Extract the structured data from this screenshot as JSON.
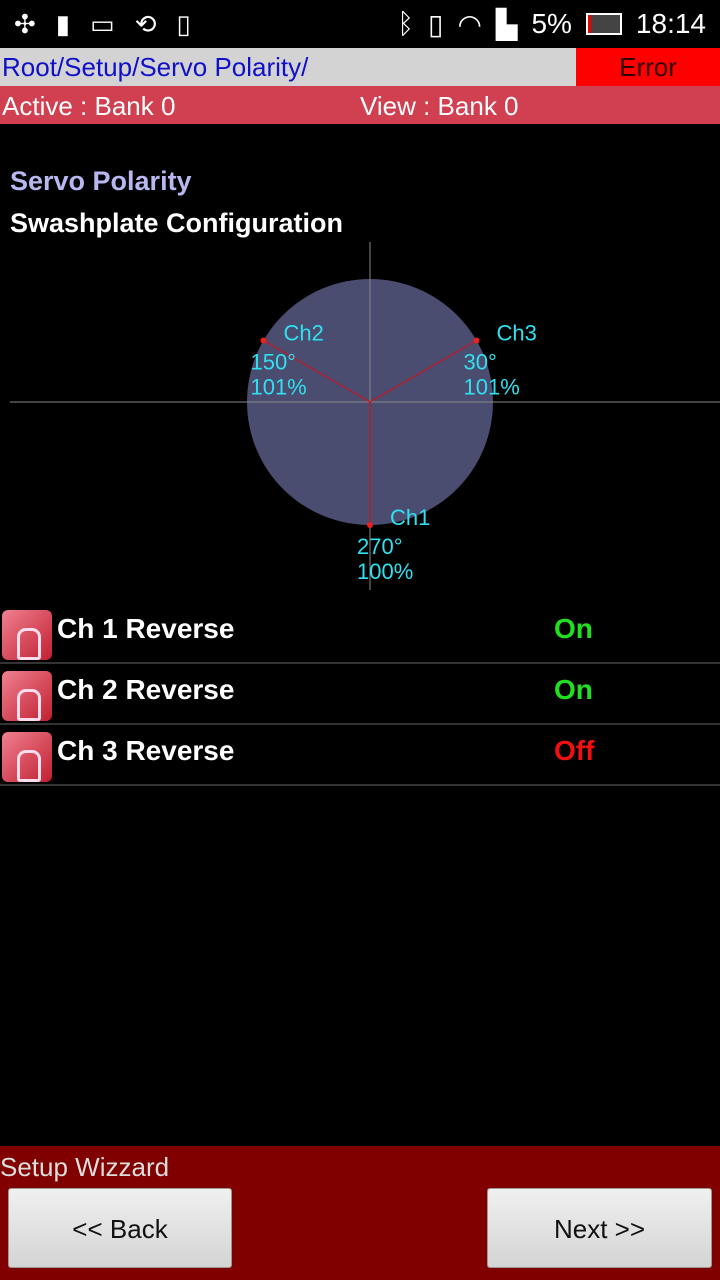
{
  "status_bar": {
    "battery": "5%",
    "time": "18:14"
  },
  "breadcrumb": "Root/Setup/Servo Polarity/",
  "error_label": "Error",
  "bank": {
    "active": "Active : Bank 0",
    "view": "View : Bank 0"
  },
  "title": "Servo Polarity",
  "subtitle": "Swashplate Configuration",
  "diagram": {
    "channels": [
      {
        "name": "Ch1",
        "angle": "270°",
        "percent": "100%",
        "deg": 270
      },
      {
        "name": "Ch2",
        "angle": "150°",
        "percent": "101%",
        "deg": 150
      },
      {
        "name": "Ch3",
        "angle": "30°",
        "percent": "101%",
        "deg": 30
      }
    ],
    "disc_color": "#4a4c70",
    "line_color": "#b02030",
    "label_color": "#30e0f0"
  },
  "settings": [
    {
      "label": "Ch 1 Reverse",
      "value": "On",
      "color": "#20e020"
    },
    {
      "label": "Ch 2 Reverse",
      "value": "On",
      "color": "#20e020"
    },
    {
      "label": "Ch 3 Reverse",
      "value": "Off",
      "color": "#f01010"
    }
  ],
  "footer": {
    "title": "Setup Wizzard",
    "back": "<< Back",
    "next": "Next >>"
  }
}
